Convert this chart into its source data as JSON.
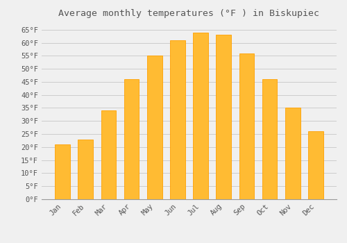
{
  "title": "Average monthly temperatures (°F ) in Biskupiec",
  "months": [
    "Jan",
    "Feb",
    "Mar",
    "Apr",
    "May",
    "Jun",
    "Jul",
    "Aug",
    "Sep",
    "Oct",
    "Nov",
    "Dec"
  ],
  "values": [
    21,
    23,
    34,
    46,
    55,
    61,
    64,
    63,
    56,
    46,
    35,
    26
  ],
  "bar_color": "#FFBB33",
  "bar_edge_color": "#FFA000",
  "background_color": "#F0F0F0",
  "grid_color": "#CCCCCC",
  "text_color": "#555555",
  "ylim": [
    0,
    68
  ],
  "yticks": [
    0,
    5,
    10,
    15,
    20,
    25,
    30,
    35,
    40,
    45,
    50,
    55,
    60,
    65
  ],
  "title_fontsize": 9.5,
  "tick_fontsize": 7.5,
  "bar_width": 0.65
}
